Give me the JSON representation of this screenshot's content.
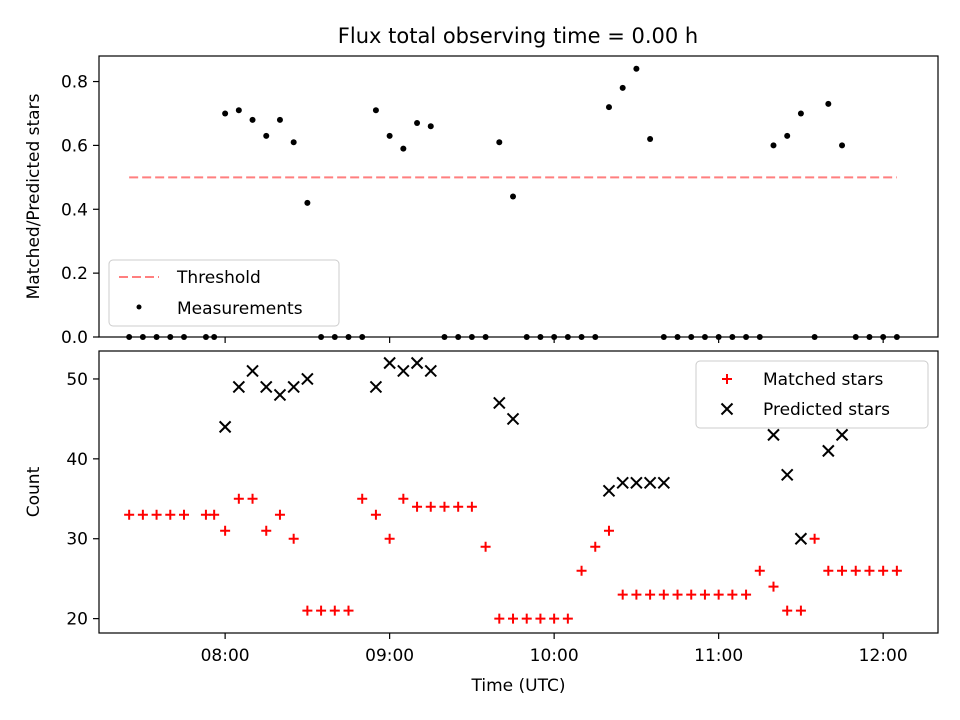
{
  "title": "Flux total observing time = 0.00 h",
  "colors": {
    "threshold": "#ff7f7f",
    "measurements": "#000000",
    "matched": "#ff0000",
    "predicted": "#000000"
  },
  "chart_data": [
    {
      "type": "scatter",
      "ylabel": "Matched/Predicted stars",
      "xlim": [
        "07:14",
        "12:20"
      ],
      "ylim": [
        0,
        0.88
      ],
      "yticks": [
        0.0,
        0.2,
        0.4,
        0.6,
        0.8
      ],
      "ytick_labels": [
        "0.0",
        "0.2",
        "0.4",
        "0.6",
        "0.8"
      ],
      "xticks": [
        "08:00",
        "09:00",
        "10:00",
        "11:00",
        "12:00"
      ],
      "legend": {
        "position": "lower-left",
        "entries": [
          "Threshold",
          "Measurements"
        ]
      },
      "threshold": {
        "name": "Threshold",
        "value": 0.5,
        "x_range": [
          "07:25",
          "12:05"
        ]
      },
      "series": [
        {
          "name": "Measurements",
          "marker": "dot",
          "x": [
            "07:25",
            "07:30",
            "07:35",
            "07:40",
            "07:45",
            "07:53",
            "07:56",
            "08:00",
            "08:05",
            "08:10",
            "08:15",
            "08:20",
            "08:25",
            "08:30",
            "08:35",
            "08:40",
            "08:45",
            "08:50",
            "08:55",
            "09:00",
            "09:05",
            "09:10",
            "09:15",
            "09:20",
            "09:25",
            "09:30",
            "09:35",
            "09:40",
            "09:45",
            "09:50",
            "09:55",
            "10:00",
            "10:05",
            "10:10",
            "10:15",
            "10:20",
            "10:25",
            "10:30",
            "10:35",
            "10:40",
            "10:45",
            "10:50",
            "10:55",
            "11:00",
            "11:05",
            "11:10",
            "11:15",
            "11:20",
            "11:25",
            "11:30",
            "11:35",
            "11:40",
            "11:45",
            "11:50",
            "11:55",
            "12:00",
            "12:05"
          ],
          "y": [
            0,
            0,
            0,
            0,
            0,
            0,
            0,
            0.7,
            0.71,
            0.68,
            0.63,
            0.68,
            0.61,
            0.42,
            0,
            0,
            0,
            0,
            0.71,
            0.63,
            0.59,
            0.67,
            0.66,
            0,
            0,
            0,
            0,
            0.61,
            0.44,
            0,
            0,
            0,
            0,
            0,
            0,
            0.72,
            0.78,
            0.84,
            0.62,
            0,
            0,
            0,
            0,
            0,
            0,
            0,
            0,
            0.6,
            0.63,
            0.7,
            0,
            0.73,
            0.6,
            0,
            0,
            0,
            0
          ]
        }
      ]
    },
    {
      "type": "scatter",
      "xlabel": "Time (UTC)",
      "ylabel": "Count",
      "xlim": [
        "07:14",
        "12:20"
      ],
      "ylim": [
        18.2,
        53.5
      ],
      "yticks": [
        20,
        30,
        40,
        50
      ],
      "ytick_labels": [
        "20",
        "30",
        "40",
        "50"
      ],
      "xticks": [
        "08:00",
        "09:00",
        "10:00",
        "11:00",
        "12:00"
      ],
      "legend": {
        "position": "upper-right",
        "entries": [
          "Matched stars",
          "Predicted stars"
        ]
      },
      "series": [
        {
          "name": "Matched stars",
          "marker": "plus",
          "x": [
            "07:25",
            "07:30",
            "07:35",
            "07:40",
            "07:45",
            "07:53",
            "07:56",
            "08:00",
            "08:05",
            "08:10",
            "08:15",
            "08:20",
            "08:25",
            "08:30",
            "08:35",
            "08:40",
            "08:45",
            "08:50",
            "08:55",
            "09:00",
            "09:05",
            "09:10",
            "09:15",
            "09:20",
            "09:25",
            "09:30",
            "09:35",
            "09:40",
            "09:45",
            "09:50",
            "09:55",
            "10:00",
            "10:05",
            "10:10",
            "10:15",
            "10:20",
            "10:25",
            "10:30",
            "10:35",
            "10:40",
            "10:45",
            "10:50",
            "10:55",
            "11:00",
            "11:05",
            "11:10",
            "11:15",
            "11:20",
            "11:25",
            "11:30",
            "11:35",
            "11:40",
            "11:45",
            "11:50",
            "11:55",
            "12:00",
            "12:05"
          ],
          "y": [
            33,
            33,
            33,
            33,
            33,
            33,
            33,
            31,
            35,
            35,
            31,
            33,
            30,
            21,
            21,
            21,
            21,
            35,
            33,
            30,
            35,
            34,
            34,
            34,
            34,
            34,
            29,
            20,
            20,
            20,
            20,
            20,
            20,
            26,
            29,
            31,
            23,
            23,
            23,
            23,
            23,
            23,
            23,
            23,
            23,
            23,
            26,
            24,
            21,
            21,
            30,
            26,
            26,
            26,
            26,
            26,
            26
          ]
        },
        {
          "name": "Predicted stars",
          "marker": "x",
          "x": [
            "08:00",
            "08:05",
            "08:10",
            "08:15",
            "08:20",
            "08:25",
            "08:30",
            "08:55",
            "09:00",
            "09:05",
            "09:10",
            "09:15",
            "09:40",
            "09:45",
            "10:20",
            "10:25",
            "10:30",
            "10:35",
            "10:40",
            "11:20",
            "11:25",
            "11:30",
            "11:40",
            "11:45"
          ],
          "y": [
            44,
            49,
            51,
            49,
            48,
            49,
            50,
            49,
            52,
            51,
            52,
            51,
            47,
            45,
            36,
            37,
            37,
            37,
            37,
            43,
            38,
            30,
            41,
            43
          ]
        }
      ]
    }
  ]
}
